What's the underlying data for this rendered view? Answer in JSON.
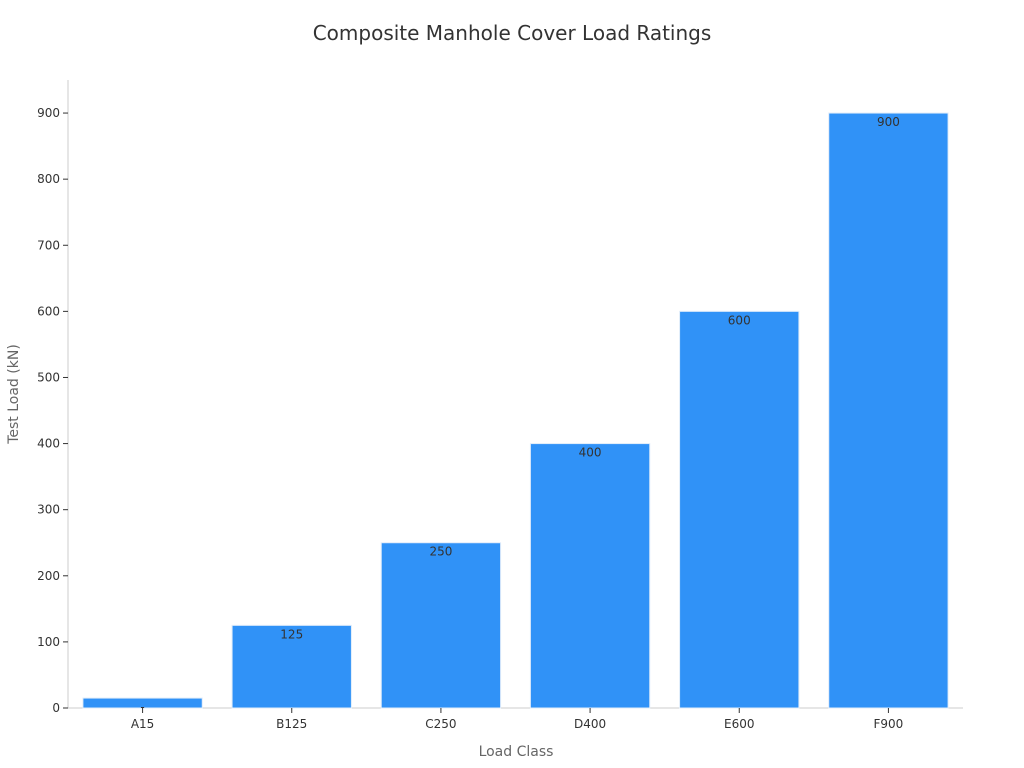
{
  "chart_data": {
    "type": "bar",
    "title": "Composite Manhole Cover Load Ratings",
    "xlabel": "Load Class",
    "ylabel": "Test Load (kN)",
    "categories": [
      "A15",
      "B125",
      "C250",
      "D400",
      "E600",
      "F900"
    ],
    "values": [
      15,
      125,
      250,
      400,
      600,
      900
    ],
    "data_labels": [
      "-",
      "125",
      "250",
      "400",
      "600",
      "900"
    ],
    "ylim": [
      0,
      950
    ],
    "yticks": [
      0,
      100,
      200,
      300,
      400,
      500,
      600,
      700,
      800,
      900
    ],
    "grid": false,
    "legend": "none",
    "bar_color": "#3092f7"
  }
}
